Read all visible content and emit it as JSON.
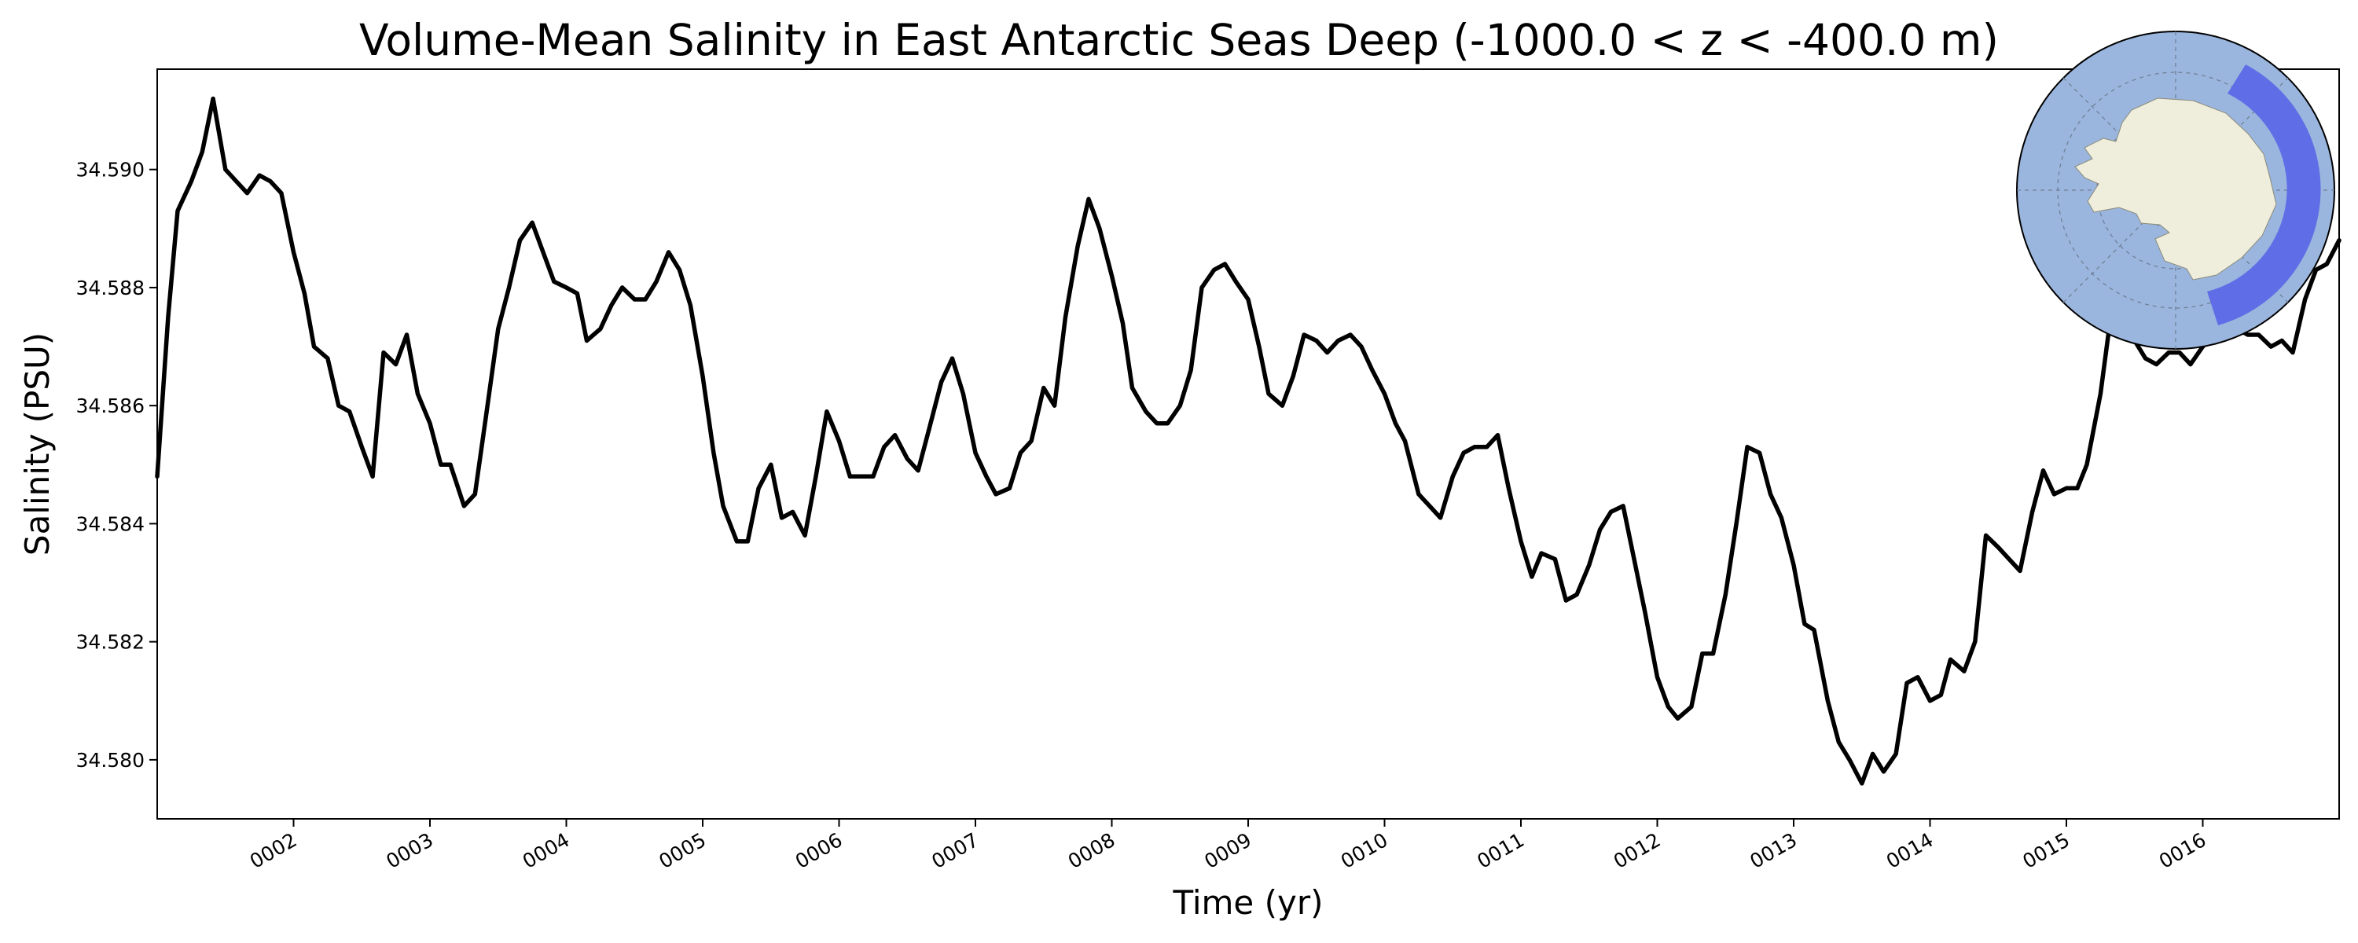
{
  "chart_data": {
    "type": "line",
    "title": "Volume-Mean Salinity in East Antarctic Seas Deep (-1000.0 < z < -400.0 m)",
    "xlabel": "Time (yr)",
    "ylabel": "Salinity (PSU)",
    "xlim": [
      1.0,
      17.0
    ],
    "ylim": [
      34.579,
      34.5917
    ],
    "grid": false,
    "line_color": "#000000",
    "x_ticks": [
      {
        "value": 2,
        "label": "0002"
      },
      {
        "value": 3,
        "label": "0003"
      },
      {
        "value": 4,
        "label": "0004"
      },
      {
        "value": 5,
        "label": "0005"
      },
      {
        "value": 6,
        "label": "0006"
      },
      {
        "value": 7,
        "label": "0007"
      },
      {
        "value": 8,
        "label": "0008"
      },
      {
        "value": 9,
        "label": "0009"
      },
      {
        "value": 10,
        "label": "0010"
      },
      {
        "value": 11,
        "label": "0011"
      },
      {
        "value": 12,
        "label": "0012"
      },
      {
        "value": 13,
        "label": "0013"
      },
      {
        "value": 14,
        "label": "0014"
      },
      {
        "value": 15,
        "label": "0015"
      },
      {
        "value": 16,
        "label": "0016"
      }
    ],
    "y_ticks": [
      {
        "value": 34.58,
        "label": "34.580"
      },
      {
        "value": 34.582,
        "label": "34.582"
      },
      {
        "value": 34.584,
        "label": "34.584"
      },
      {
        "value": 34.586,
        "label": "34.586"
      },
      {
        "value": 34.588,
        "label": "34.588"
      },
      {
        "value": 34.59,
        "label": "34.590"
      }
    ],
    "series": [
      {
        "x": [
          1.0,
          1.08,
          1.15,
          1.25,
          1.33,
          1.41,
          1.5,
          1.58,
          1.66,
          1.75,
          1.83,
          1.91,
          2.0,
          2.08,
          2.15,
          2.25,
          2.33,
          2.41,
          2.5,
          2.58,
          2.66,
          2.75,
          2.83,
          2.91,
          3.0,
          3.08,
          3.15,
          3.25,
          3.33,
          3.41,
          3.5,
          3.58,
          3.66,
          3.75,
          3.83,
          3.91,
          4.0,
          4.08,
          4.15,
          4.25,
          4.33,
          4.41,
          4.5,
          4.58,
          4.66,
          4.75,
          4.83,
          4.91,
          5.0,
          5.08,
          5.15,
          5.25,
          5.33,
          5.41,
          5.5,
          5.58,
          5.66,
          5.75,
          5.83,
          5.91,
          6.0,
          6.08,
          6.15,
          6.25,
          6.33,
          6.41,
          6.5,
          6.58,
          6.66,
          6.75,
          6.83,
          6.91,
          7.0,
          7.08,
          7.15,
          7.25,
          7.33,
          7.41,
          7.5,
          7.58,
          7.66,
          7.75,
          7.83,
          7.91,
          8.0,
          8.08,
          8.15,
          8.25,
          8.33,
          8.41,
          8.5,
          8.58,
          8.66,
          8.75,
          8.83,
          8.91,
          9.0,
          9.08,
          9.15,
          9.25,
          9.33,
          9.41,
          9.5,
          9.58,
          9.66,
          9.75,
          9.83,
          9.91,
          10.0,
          10.08,
          10.15,
          10.25,
          10.33,
          10.41,
          10.5,
          10.58,
          10.66,
          10.75,
          10.83,
          10.91,
          11.0,
          11.08,
          11.15,
          11.25,
          11.33,
          11.41,
          11.5,
          11.58,
          11.66,
          11.75,
          11.83,
          11.91,
          12.0,
          12.08,
          12.15,
          12.25,
          12.33,
          12.41,
          12.5,
          12.58,
          12.66,
          12.75,
          12.83,
          12.91,
          13.0,
          13.08,
          13.15,
          13.25,
          13.33,
          13.41,
          13.5,
          13.58,
          13.66,
          13.75,
          13.83,
          13.91,
          14.0,
          14.08,
          14.15,
          14.25,
          14.33,
          14.41,
          14.5,
          14.58,
          14.66,
          14.75,
          14.83,
          14.91,
          15.0,
          15.08,
          15.15,
          15.25,
          15.33,
          15.41,
          15.5,
          15.58,
          15.66,
          15.75,
          15.83,
          15.91,
          16.0,
          16.08,
          16.15,
          16.25,
          16.33,
          16.41,
          16.5,
          16.58,
          16.66,
          16.75,
          16.83,
          16.91,
          17.0
        ],
        "y": [
          34.5848,
          34.5875,
          34.5893,
          34.5898,
          34.5903,
          34.5912,
          34.59,
          34.5898,
          34.5896,
          34.5899,
          34.5898,
          34.5896,
          34.5886,
          34.5879,
          34.587,
          34.5868,
          34.586,
          34.5859,
          34.5853,
          34.5848,
          34.5869,
          34.5867,
          34.5872,
          34.5862,
          34.5857,
          34.585,
          34.585,
          34.5843,
          34.5845,
          34.5858,
          34.5873,
          34.588,
          34.5888,
          34.5891,
          34.5886,
          34.5881,
          34.588,
          34.5879,
          34.5871,
          34.5873,
          34.5877,
          34.588,
          34.5878,
          34.5878,
          34.5881,
          34.5886,
          34.5883,
          34.5877,
          34.5865,
          34.5852,
          34.5843,
          34.5837,
          34.5837,
          34.5846,
          34.585,
          34.5841,
          34.5842,
          34.5838,
          34.5848,
          34.5859,
          34.5854,
          34.5848,
          34.5848,
          34.5848,
          34.5853,
          34.5855,
          34.5851,
          34.5849,
          34.5856,
          34.5864,
          34.5868,
          34.5862,
          34.5852,
          34.5848,
          34.5845,
          34.5846,
          34.5852,
          34.5854,
          34.5863,
          34.586,
          34.5875,
          34.5887,
          34.5895,
          34.589,
          34.5882,
          34.5874,
          34.5863,
          34.5859,
          34.5857,
          34.5857,
          34.586,
          34.5866,
          34.588,
          34.5883,
          34.5884,
          34.5881,
          34.5878,
          34.587,
          34.5862,
          34.586,
          34.5865,
          34.5872,
          34.5871,
          34.5869,
          34.5871,
          34.5872,
          34.587,
          34.5866,
          34.5862,
          34.5857,
          34.5854,
          34.5845,
          34.5843,
          34.5841,
          34.5848,
          34.5852,
          34.5853,
          34.5853,
          34.5855,
          34.5846,
          34.5837,
          34.5831,
          34.5835,
          34.5834,
          34.5827,
          34.5828,
          34.5833,
          34.5839,
          34.5842,
          34.5843,
          34.5834,
          34.5825,
          34.5814,
          34.5809,
          34.5807,
          34.5809,
          34.5818,
          34.5818,
          34.5828,
          34.584,
          34.5853,
          34.5852,
          34.5845,
          34.5841,
          34.5833,
          34.5823,
          34.5822,
          34.581,
          34.5803,
          34.58,
          34.5796,
          34.5801,
          34.5798,
          34.5801,
          34.5813,
          34.5814,
          34.581,
          34.5811,
          34.5817,
          34.5815,
          34.582,
          34.5838,
          34.5836,
          34.5834,
          34.5832,
          34.5842,
          34.5849,
          34.5845,
          34.5846,
          34.5846,
          34.585,
          34.5862,
          34.5876,
          34.5873,
          34.5871,
          34.5868,
          34.5867,
          34.5869,
          34.5869,
          34.5867,
          34.587,
          34.5872,
          34.5874,
          34.5873,
          34.5872,
          34.5872,
          34.587,
          34.5871,
          34.5869,
          34.5878,
          34.5883,
          34.5884,
          34.5888
        ]
      }
    ]
  },
  "inset_map": {
    "ocean_color": "#9bb6de",
    "land_color": "#efeedc",
    "region_color": "#5f6ee6"
  }
}
